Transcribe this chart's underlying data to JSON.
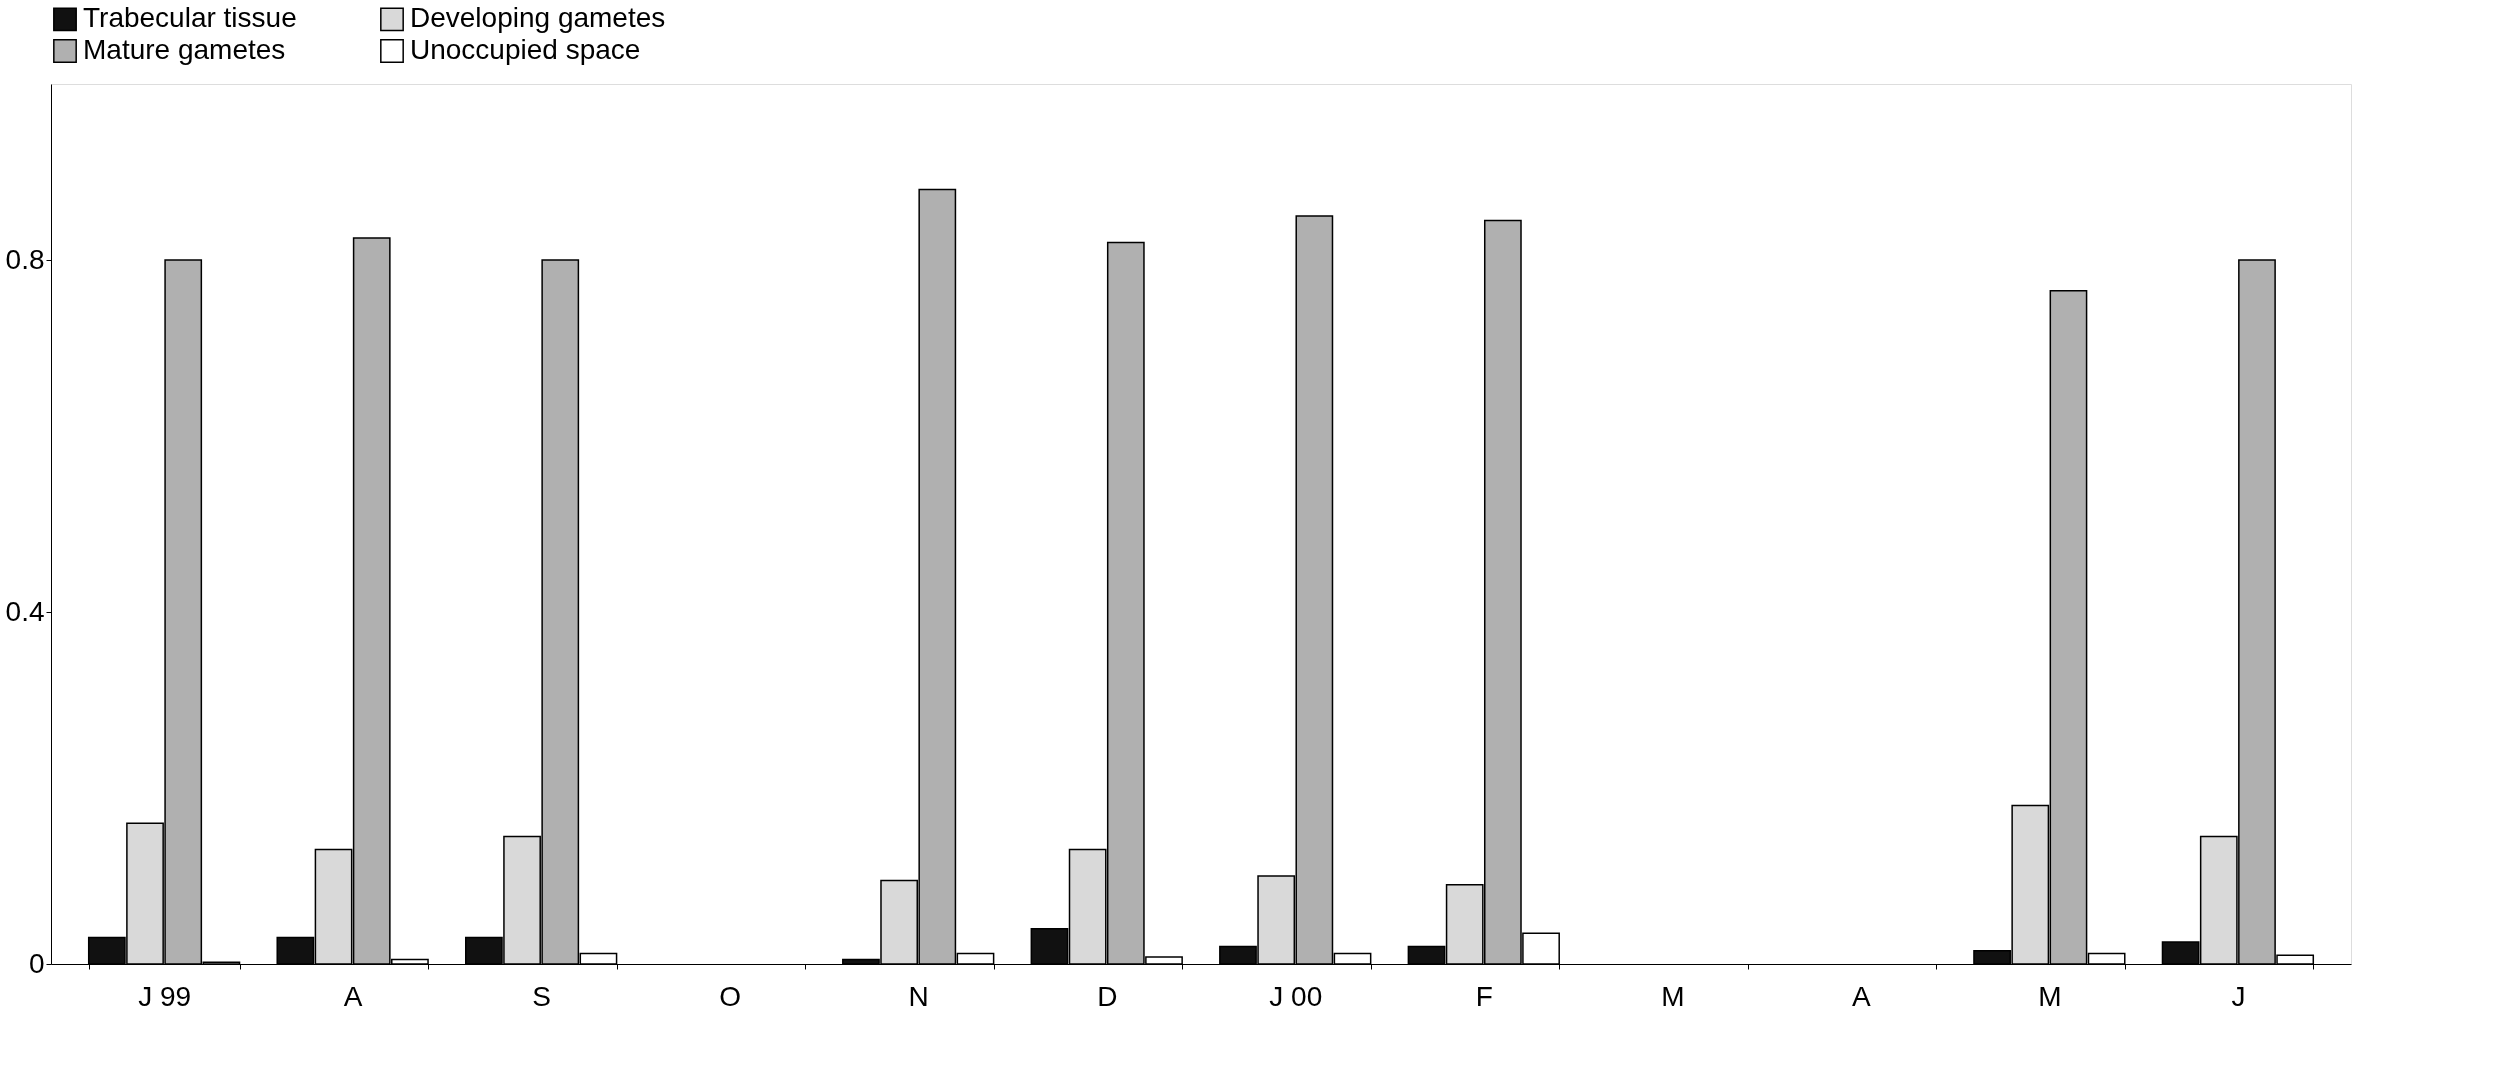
{
  "chart_data": {
    "type": "bar",
    "categories": [
      "J 99",
      "A",
      "S",
      "O",
      "N",
      "D",
      "J 00",
      "F",
      "M",
      "A",
      "M",
      "J"
    ],
    "series": [
      {
        "name": "Trabecular tissue",
        "color": "#111111",
        "values": [
          0.03,
          0.03,
          0.03,
          null,
          0.005,
          0.04,
          0.02,
          0.02,
          null,
          null,
          0.015,
          0.025
        ]
      },
      {
        "name": "Developing gametes",
        "color": "#d9d9d9",
        "values": [
          0.16,
          0.13,
          0.145,
          null,
          0.095,
          0.13,
          0.1,
          0.09,
          null,
          null,
          0.18,
          0.145
        ]
      },
      {
        "name": "Mature gametes",
        "color": "#b0b0b0",
        "values": [
          0.8,
          0.825,
          0.8,
          null,
          0.88,
          0.82,
          0.85,
          0.845,
          null,
          null,
          0.765,
          0.8
        ]
      },
      {
        "name": "Unoccupied space",
        "color": "#ffffff",
        "values": [
          0.002,
          0.005,
          0.012,
          null,
          0.012,
          0.008,
          0.012,
          0.035,
          null,
          null,
          0.012,
          0.01
        ]
      }
    ],
    "ylim": [
      0,
      1.0
    ],
    "yticks": [
      0,
      0.4,
      0.8
    ],
    "grid": false,
    "legend": "top"
  }
}
